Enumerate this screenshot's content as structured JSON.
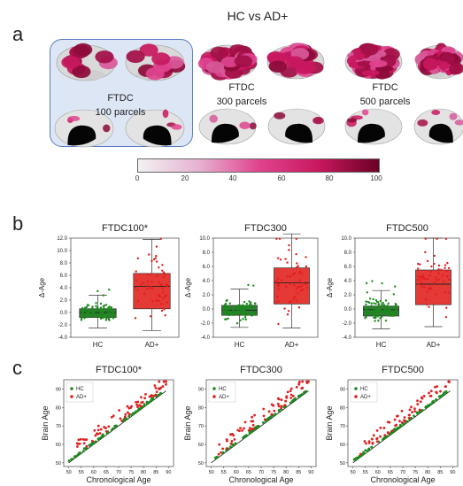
{
  "main_title": "HC vs AD+",
  "panel_letters": [
    "a",
    "b",
    "c"
  ],
  "brains": [
    {
      "label": "FTDC",
      "parcels": "100 parcels"
    },
    {
      "label": "FTDC",
      "parcels": "300 parcels"
    },
    {
      "label": "FTDC",
      "parcels": "500 parcels"
    }
  ],
  "colorbar": {
    "ticks": [
      "0",
      "20",
      "40",
      "60",
      "80",
      "100"
    ],
    "colors": [
      "#f2f2f2",
      "#e6b3d1",
      "#e0448f",
      "#c8185e",
      "#6b0025"
    ]
  },
  "colors": {
    "hc": "#1b8a1b",
    "ad": "#e01f1f",
    "hc_box": "#2e7d32",
    "ad_box": "#e53935",
    "highlight_border": "#5b7ec2"
  },
  "chart_data": [
    {
      "type": "box",
      "title": "FTDC100*",
      "ylabel": "Δ-Age",
      "categories": [
        "HC",
        "AD+"
      ],
      "ylim": [
        -4,
        12
      ],
      "yticks": [
        "-4.0",
        "-2.0",
        "0.0",
        "2.0",
        "4.0",
        "6.0",
        "8.0",
        "10.0",
        "12.0"
      ],
      "series": [
        {
          "name": "HC",
          "q1": -0.8,
          "median": 0.0,
          "q3": 0.6,
          "whisker_low": -2.5,
          "whisker_high": 2.8
        },
        {
          "name": "AD+",
          "q1": 0.6,
          "median": 4.2,
          "q3": 6.3,
          "whisker_low": -2.9,
          "whisker_high": 11.8
        }
      ]
    },
    {
      "type": "box",
      "title": "FTDC300",
      "ylabel": "Δ-Age",
      "categories": [
        "HC",
        "AD+"
      ],
      "ylim": [
        -4,
        10
      ],
      "yticks": [
        "-4.0",
        "-2.0",
        "0.0",
        "2.0",
        "4.0",
        "6.0",
        "8.0",
        "10.0"
      ],
      "series": [
        {
          "name": "HC",
          "q1": -0.9,
          "median": -0.2,
          "q3": 0.5,
          "whisker_low": -2.6,
          "whisker_high": 2.8
        },
        {
          "name": "AD+",
          "q1": 0.7,
          "median": 3.7,
          "q3": 5.8,
          "whisker_low": -2.7,
          "whisker_high": 10.6
        }
      ]
    },
    {
      "type": "box",
      "title": "FTDC500",
      "ylabel": "Δ-Age",
      "categories": [
        "HC",
        "AD+"
      ],
      "ylim": [
        -4,
        10
      ],
      "yticks": [
        "-4.0",
        "-2.0",
        "0.0",
        "2.0",
        "4.0",
        "6.0",
        "8.0",
        "10.0"
      ],
      "series": [
        {
          "name": "HC",
          "q1": -1.0,
          "median": -0.1,
          "q3": 0.4,
          "whisker_low": -2.8,
          "whisker_high": 2.6
        },
        {
          "name": "AD+",
          "q1": 0.6,
          "median": 3.5,
          "q3": 5.5,
          "whisker_low": -2.5,
          "whisker_high": 10.0
        }
      ]
    },
    {
      "type": "scatter",
      "title": "FTDC100*",
      "xlabel": "Chronological Age",
      "ylabel": "Brain Age",
      "xlim": [
        48,
        92
      ],
      "ylim": [
        48,
        95
      ],
      "xticks": [
        "50",
        "55",
        "60",
        "65",
        "70",
        "75",
        "80",
        "85",
        "90"
      ],
      "yticks": [
        "50",
        "60",
        "70",
        "80",
        "90"
      ],
      "legend": [
        "HC",
        "AD+"
      ],
      "legend_position": "top-left"
    },
    {
      "type": "scatter",
      "title": "FTDC300",
      "xlabel": "Chronological Age",
      "ylabel": "Brain Age",
      "xlim": [
        48,
        92
      ],
      "ylim": [
        48,
        95
      ],
      "xticks": [
        "50",
        "55",
        "60",
        "65",
        "70",
        "75",
        "80",
        "85",
        "90"
      ],
      "yticks": [
        "50",
        "60",
        "70",
        "80",
        "90"
      ],
      "legend": [
        "HC",
        "AD+"
      ],
      "legend_position": "top-left"
    },
    {
      "type": "scatter",
      "title": "FTDC500",
      "xlabel": "Chronological Age",
      "ylabel": "Brain Age",
      "xlim": [
        48,
        92
      ],
      "ylim": [
        48,
        95
      ],
      "xticks": [
        "50",
        "55",
        "60",
        "65",
        "70",
        "75",
        "80",
        "85",
        "90"
      ],
      "yticks": [
        "50",
        "60",
        "70",
        "80",
        "90"
      ],
      "legend": [
        "HC",
        "AD+"
      ],
      "legend_position": "top-left"
    }
  ]
}
